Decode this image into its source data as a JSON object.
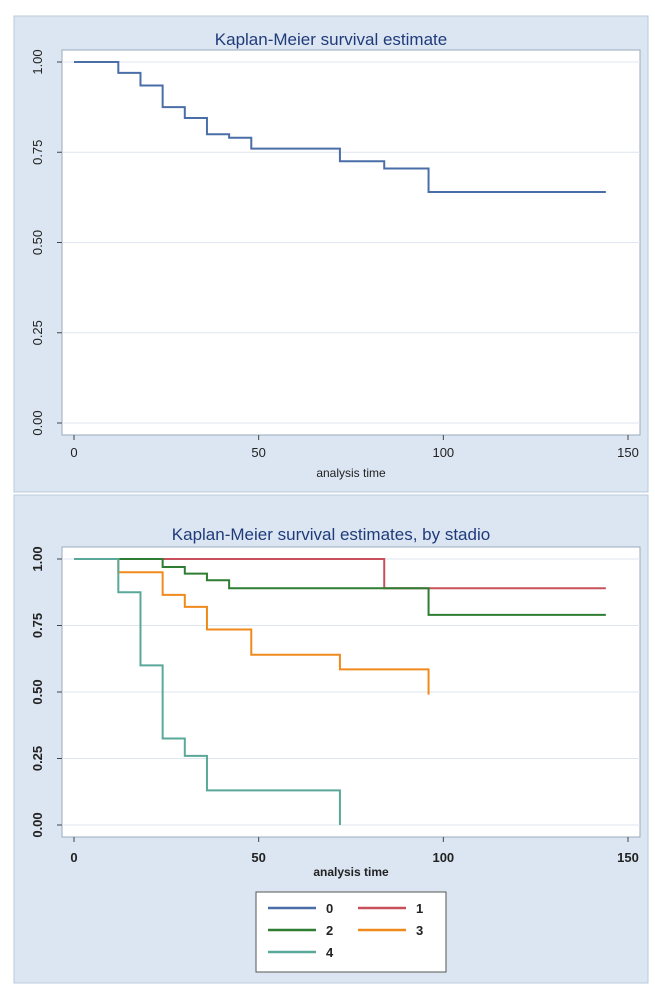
{
  "chart_data": [
    {
      "type": "line",
      "step": true,
      "title": "Kaplan-Meier survival estimate",
      "xlabel": "analysis time",
      "ylabel": "",
      "xlim": [
        0,
        150
      ],
      "ylim": [
        0,
        1
      ],
      "xticks": [
        0,
        50,
        100,
        150
      ],
      "yticks": [
        0,
        0.25,
        0.5,
        0.75,
        1.0
      ],
      "xtick_labels": [
        "0",
        "50",
        "100",
        "150"
      ],
      "ytick_labels": [
        "0.00",
        "0.25",
        "0.50",
        "0.75",
        "1.00"
      ],
      "grid": true,
      "series": [
        {
          "color": "#4a6ea8",
          "x": [
            0,
            12,
            18,
            24,
            30,
            36,
            42,
            48,
            72,
            84,
            96,
            144
          ],
          "y": [
            1.0,
            0.97,
            0.935,
            0.875,
            0.845,
            0.8,
            0.79,
            0.76,
            0.725,
            0.705,
            0.64,
            0.64
          ]
        }
      ]
    },
    {
      "type": "line",
      "step": true,
      "title": "Kaplan-Meier survival estimates, by stadio",
      "xlabel": "analysis time",
      "ylabel": "",
      "xlim": [
        0,
        150
      ],
      "ylim": [
        0,
        1
      ],
      "xticks": [
        0,
        50,
        100,
        150
      ],
      "yticks": [
        0,
        0.25,
        0.5,
        0.75,
        1.0
      ],
      "xtick_labels": [
        "0",
        "50",
        "100",
        "150"
      ],
      "ytick_labels": [
        "0.00",
        "0.25",
        "0.50",
        "0.75",
        "1.00"
      ],
      "grid": true,
      "legend_position": "bottom",
      "series": [
        {
          "name": "0",
          "color": "#4a6ea8",
          "x": [
            0,
            12
          ],
          "y": [
            1.0,
            1.0
          ]
        },
        {
          "name": "1",
          "color": "#c8505a",
          "x": [
            0,
            84,
            144
          ],
          "y": [
            1.0,
            0.89,
            0.89
          ]
        },
        {
          "name": "2",
          "color": "#2e7d32",
          "x": [
            0,
            24,
            30,
            36,
            42,
            96,
            144
          ],
          "y": [
            1.0,
            0.97,
            0.945,
            0.92,
            0.89,
            0.79,
            0.79
          ]
        },
        {
          "name": "3",
          "color": "#f08a1c",
          "x": [
            0,
            12,
            24,
            30,
            36,
            48,
            72,
            96
          ],
          "y": [
            1.0,
            0.95,
            0.865,
            0.82,
            0.735,
            0.64,
            0.585,
            0.49
          ]
        },
        {
          "name": "4",
          "color": "#5aa89a",
          "x": [
            0,
            12,
            18,
            24,
            30,
            36,
            72
          ],
          "y": [
            1.0,
            0.875,
            0.6,
            0.325,
            0.26,
            0.13,
            0.0
          ]
        }
      ]
    }
  ]
}
